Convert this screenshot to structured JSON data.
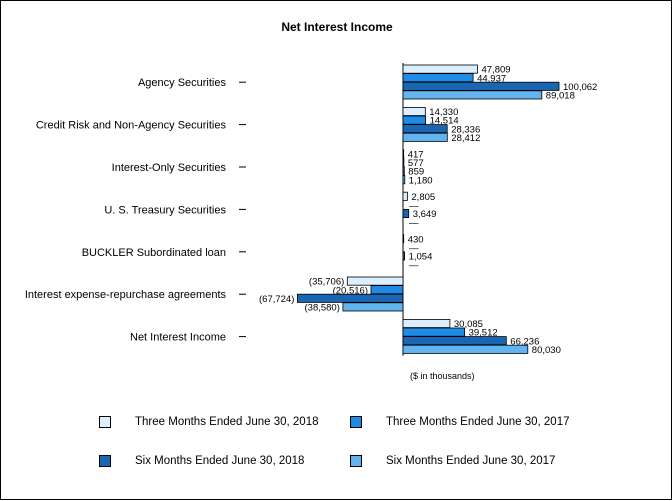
{
  "chart_data": {
    "type": "bar",
    "orientation": "horizontal",
    "title": "Net Interest Income",
    "units_note": "($ in thousands)",
    "categories": [
      "Agency Securities",
      "Credit Risk and Non-Agency Securities",
      "Interest-Only Securities",
      "U. S. Treasury Securities",
      "BUCKLER Subordinated loan",
      "Interest expense-repurchase agreements",
      "Net Interest Income"
    ],
    "series": [
      {
        "name": "Three Months Ended June 30, 2018",
        "color": "#dcefff",
        "values": [
          47809,
          14330,
          417,
          2805,
          430,
          -35706,
          30085
        ],
        "labels": [
          "47,809",
          "14,330",
          "417",
          "2,805",
          "430",
          "(35,706)",
          "30,085"
        ]
      },
      {
        "name": "Three Months Ended June 30, 2017",
        "color": "#1e8ce6",
        "values": [
          44937,
          14514,
          577,
          0,
          0,
          -20516,
          39512
        ],
        "labels": [
          "44,937",
          "14,514",
          "577",
          "—",
          "—",
          "(20,516)",
          "39,512"
        ]
      },
      {
        "name": "Six Months Ended June 30, 2018",
        "color": "#1a66b3",
        "values": [
          100062,
          28336,
          859,
          3649,
          1054,
          -67724,
          66236
        ],
        "labels": [
          "100,062",
          "28,336",
          "859",
          "3,649",
          "1,054",
          "(67,724)",
          "66,236"
        ]
      },
      {
        "name": "Six Months Ended June 30, 2017",
        "color": "#62b4f0",
        "values": [
          89018,
          28412,
          1180,
          0,
          0,
          -38580,
          80030
        ],
        "labels": [
          "89,018",
          "28,412",
          "1,180",
          "—",
          "—",
          "(38,580)",
          "80,030"
        ]
      }
    ],
    "xlim": [
      -67724,
      100062
    ],
    "legend_position": "bottom",
    "grid": false
  }
}
